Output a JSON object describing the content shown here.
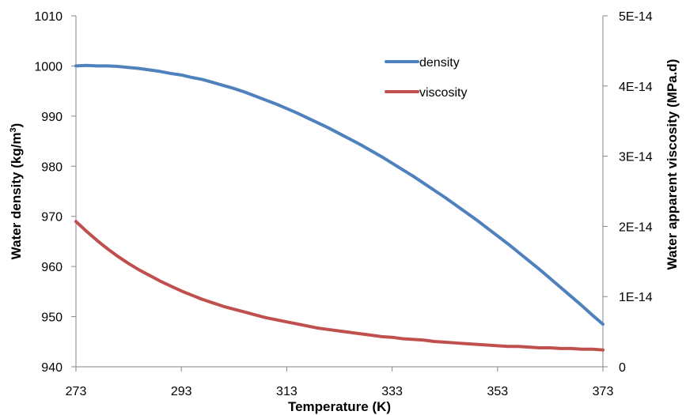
{
  "chart_data": {
    "type": "line",
    "xlabel": "Temperature (K)",
    "ylabel_left": {
      "main": "Water density (kg/m",
      "sup": "3",
      "end": ")"
    },
    "ylabel_right": "Water apparent viscosity (MPa.d)",
    "xlim": [
      273,
      373
    ],
    "ylim_left": [
      940,
      1010
    ],
    "ylim_right": [
      0,
      5e-14
    ],
    "x_ticks": [
      273,
      293,
      313,
      333,
      353,
      373
    ],
    "x_tick_labels": [
      "273",
      "293",
      "313",
      "333",
      "353",
      "373"
    ],
    "y_left_ticks": [
      940,
      950,
      960,
      970,
      980,
      990,
      1000,
      1010
    ],
    "y_left_tick_labels": [
      "940",
      "950",
      "960",
      "970",
      "980",
      "990",
      "1000",
      "1010"
    ],
    "y_right_ticks": [
      0,
      1e-14,
      2e-14,
      3e-14,
      4e-14,
      5e-14
    ],
    "y_right_tick_labels": [
      "0",
      "1E-14",
      "2E-14",
      "3E-14",
      "4E-14",
      "5E-14"
    ],
    "grid": false,
    "legend_position": "top-right",
    "series": [
      {
        "name": "density",
        "axis": "left",
        "color": "#4F81BD",
        "x": [
          273,
          275,
          277,
          279,
          281,
          283,
          285,
          287,
          289,
          291,
          293,
          295,
          297,
          299,
          301,
          303,
          305,
          307,
          309,
          311,
          313,
          315,
          317,
          319,
          321,
          323,
          325,
          327,
          329,
          331,
          333,
          335,
          337,
          339,
          341,
          343,
          345,
          347,
          349,
          351,
          353,
          355,
          357,
          359,
          361,
          363,
          365,
          367,
          369,
          371,
          373
        ],
        "y": [
          1000.0,
          1000.1,
          1000.0,
          1000.0,
          999.9,
          999.7,
          999.5,
          999.2,
          998.9,
          998.5,
          998.2,
          997.7,
          997.3,
          996.7,
          996.1,
          995.5,
          994.8,
          994.0,
          993.2,
          992.4,
          991.5,
          990.6,
          989.6,
          988.6,
          987.6,
          986.5,
          985.4,
          984.3,
          983.1,
          981.9,
          980.6,
          979.3,
          978.0,
          976.6,
          975.2,
          973.8,
          972.3,
          970.8,
          969.3,
          967.7,
          966.1,
          964.5,
          962.8,
          961.1,
          959.4,
          957.6,
          955.8,
          954.0,
          952.2,
          950.3,
          948.5
        ]
      },
      {
        "name": "viscosity",
        "axis": "right",
        "color": "#C0504D",
        "x": [
          273,
          275,
          277,
          279,
          281,
          283,
          285,
          287,
          289,
          291,
          293,
          295,
          297,
          299,
          301,
          303,
          305,
          307,
          309,
          311,
          313,
          315,
          317,
          319,
          321,
          323,
          325,
          327,
          329,
          331,
          333,
          335,
          337,
          339,
          341,
          343,
          345,
          347,
          349,
          351,
          353,
          355,
          357,
          359,
          361,
          363,
          365,
          367,
          369,
          371,
          373
        ],
        "y": [
          2.07e-14,
          1.93e-14,
          1.8e-14,
          1.68e-14,
          1.57e-14,
          1.47e-14,
          1.38e-14,
          1.3e-14,
          1.22e-14,
          1.15e-14,
          1.08e-14,
          1.02e-14,
          9.6e-15,
          9.1e-15,
          8.6e-15,
          8.2e-15,
          7.8e-15,
          7.4e-15,
          7e-15,
          6.7e-15,
          6.4e-15,
          6.1e-15,
          5.8e-15,
          5.5e-15,
          5.3e-15,
          5.1e-15,
          4.9e-15,
          4.7e-15,
          4.5e-15,
          4.3e-15,
          4.2e-15,
          4e-15,
          3.9e-15,
          3.8e-15,
          3.6e-15,
          3.5e-15,
          3.4e-15,
          3.3e-15,
          3.2e-15,
          3.1e-15,
          3e-15,
          2.9e-15,
          2.9e-15,
          2.8e-15,
          2.7e-15,
          2.7e-15,
          2.6e-15,
          2.6e-15,
          2.5e-15,
          2.5e-15,
          2.4e-15
        ]
      }
    ]
  }
}
